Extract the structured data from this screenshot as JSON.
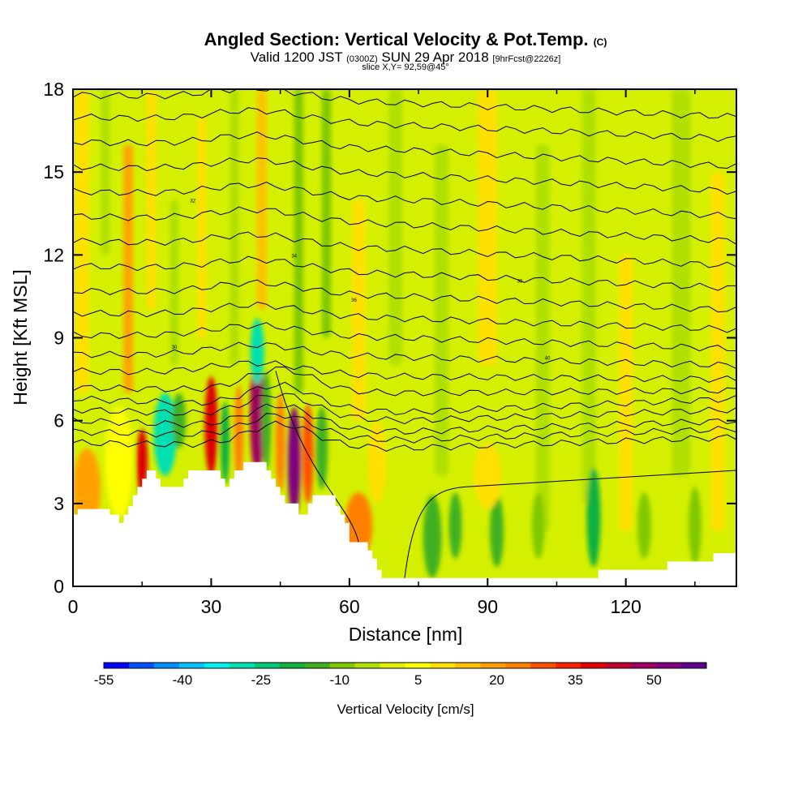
{
  "chart_data": {
    "type": "heatmap",
    "title": "Angled Section: Vertical Velocity & Pot.Temp.",
    "title_unit": "(C)",
    "subtitle_main_a": "Valid 1200 JST",
    "subtitle_utc": "(0300Z)",
    "subtitle_main_b": "SUN 29 Apr 2018",
    "subtitle_fcst": "[9hrFcst@2226z]",
    "slice_label": "slice X,Y= 92,59@45°",
    "xlabel": "Distance [nm]",
    "ylabel": "Height [Kft MSL]",
    "xlim": [
      0,
      144
    ],
    "ylim": [
      0,
      18
    ],
    "x_ticks": [
      "0",
      "30",
      "60",
      "90",
      "120"
    ],
    "y_ticks": [
      "0",
      "3",
      "6",
      "9",
      "12",
      "15",
      "18"
    ],
    "colorbar_label": "Vertical Velocity [cm/s]",
    "colorbar_ticks": [
      "-55",
      "-40",
      "-25",
      "-10",
      "5",
      "20",
      "35",
      "50"
    ],
    "colorbar_levels": [
      -55,
      60
    ],
    "colors": [
      "#0000ff",
      "#0050ff",
      "#0090ff",
      "#00c0ff",
      "#00f0f0",
      "#00e0b0",
      "#00c878",
      "#10b040",
      "#40b020",
      "#80c800",
      "#b0e000",
      "#e0f000",
      "#ffff00",
      "#ffe000",
      "#ffc000",
      "#ffa000",
      "#ff8000",
      "#ff5000",
      "#ff2000",
      "#e00000",
      "#c00030",
      "#a00060",
      "#800080",
      "#600090"
    ],
    "terrain_kft": [
      [
        0,
        2.6
      ],
      [
        1,
        2.8
      ],
      [
        7,
        2.8
      ],
      [
        8,
        2.6
      ],
      [
        10,
        2.3
      ],
      [
        11,
        2.6
      ],
      [
        12,
        2.9
      ],
      [
        13,
        3.3
      ],
      [
        14,
        3.6
      ],
      [
        15,
        3.9
      ],
      [
        16,
        4.2
      ],
      [
        17,
        4.2
      ],
      [
        18,
        3.9
      ],
      [
        19,
        3.6
      ],
      [
        23,
        3.6
      ],
      [
        24,
        3.9
      ],
      [
        25,
        4.2
      ],
      [
        31,
        4.2
      ],
      [
        32,
        3.9
      ],
      [
        33,
        3.6
      ],
      [
        34,
        3.9
      ],
      [
        35,
        4.2
      ],
      [
        37,
        4.5
      ],
      [
        40,
        4.5
      ],
      [
        42,
        4.2
      ],
      [
        43,
        3.9
      ],
      [
        44,
        3.6
      ],
      [
        45,
        3.3
      ],
      [
        46,
        3.0
      ],
      [
        48,
        3.0
      ],
      [
        49,
        2.6
      ],
      [
        50,
        2.6
      ],
      [
        51,
        3.0
      ],
      [
        52,
        3.3
      ],
      [
        56,
        3.3
      ],
      [
        57,
        2.9
      ],
      [
        58,
        2.6
      ],
      [
        59,
        2.3
      ],
      [
        60,
        1.6
      ],
      [
        63,
        1.6
      ],
      [
        64,
        1.3
      ],
      [
        65,
        1.0
      ],
      [
        66,
        0.6
      ],
      [
        67,
        0.3
      ],
      [
        113,
        0.3
      ],
      [
        114,
        0.6
      ],
      [
        128,
        0.6
      ],
      [
        129,
        0.9
      ],
      [
        138,
        0.9
      ],
      [
        139,
        1.2
      ],
      [
        144,
        1.2
      ]
    ],
    "theta_labels": [
      "30",
      "32",
      "34",
      "36",
      "38",
      "40"
    ]
  }
}
